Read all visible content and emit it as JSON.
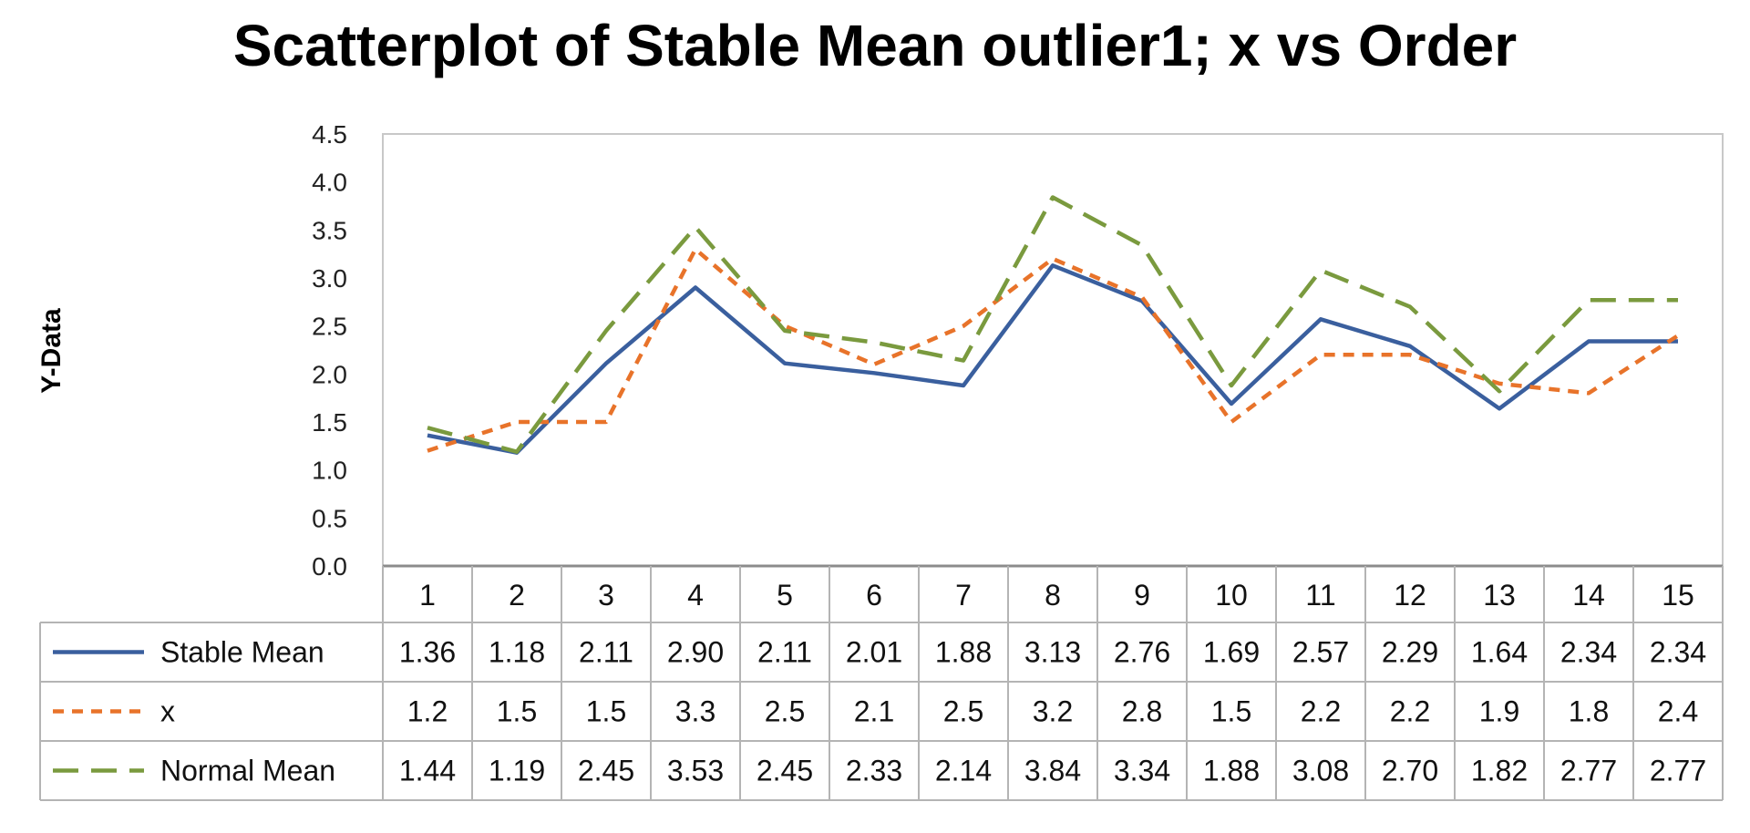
{
  "chart_data": {
    "type": "line",
    "title": "Scatterplot of Stable Mean outlier1; x vs Order",
    "ylabel": "Y-Data",
    "xlabel": "",
    "categories": [
      "1",
      "2",
      "3",
      "4",
      "5",
      "6",
      "7",
      "8",
      "9",
      "10",
      "11",
      "12",
      "13",
      "14",
      "15"
    ],
    "ylim": [
      0,
      4.5
    ],
    "yticks": [
      "0.0",
      "0.5",
      "1.0",
      "1.5",
      "2.0",
      "2.5",
      "3.0",
      "3.5",
      "4.0",
      "4.5"
    ],
    "grid": false,
    "legend": "data-table",
    "series": [
      {
        "name": "Stable Mean",
        "color": "#3a5f9e",
        "dash": "solid",
        "values": [
          1.36,
          1.18,
          2.11,
          2.9,
          2.11,
          2.01,
          1.88,
          3.13,
          2.76,
          1.69,
          2.57,
          2.29,
          1.64,
          2.34,
          2.34
        ],
        "labels": [
          "1.36",
          "1.18",
          "2.11",
          "2.90",
          "2.11",
          "2.01",
          "1.88",
          "3.13",
          "2.76",
          "1.69",
          "2.57",
          "2.29",
          "1.64",
          "2.34",
          "2.34"
        ]
      },
      {
        "name": "x",
        "color": "#e8732a",
        "dash": "short-dash",
        "values": [
          1.2,
          1.5,
          1.5,
          3.3,
          2.5,
          2.1,
          2.5,
          3.2,
          2.8,
          1.5,
          2.2,
          2.2,
          1.9,
          1.8,
          2.4
        ],
        "labels": [
          "1.2",
          "1.5",
          "1.5",
          "3.3",
          "2.5",
          "2.1",
          "2.5",
          "3.2",
          "2.8",
          "1.5",
          "2.2",
          "2.2",
          "1.9",
          "1.8",
          "2.4"
        ]
      },
      {
        "name": "Normal Mean",
        "color": "#7a9a3e",
        "dash": "long-dash",
        "values": [
          1.44,
          1.19,
          2.45,
          3.53,
          2.45,
          2.33,
          2.14,
          3.84,
          3.34,
          1.88,
          3.08,
          2.7,
          1.82,
          2.77,
          2.77
        ],
        "labels": [
          "1.44",
          "1.19",
          "2.45",
          "3.53",
          "2.45",
          "2.33",
          "2.14",
          "3.84",
          "3.34",
          "1.88",
          "3.08",
          "2.70",
          "1.82",
          "2.77",
          "2.77"
        ]
      }
    ]
  }
}
